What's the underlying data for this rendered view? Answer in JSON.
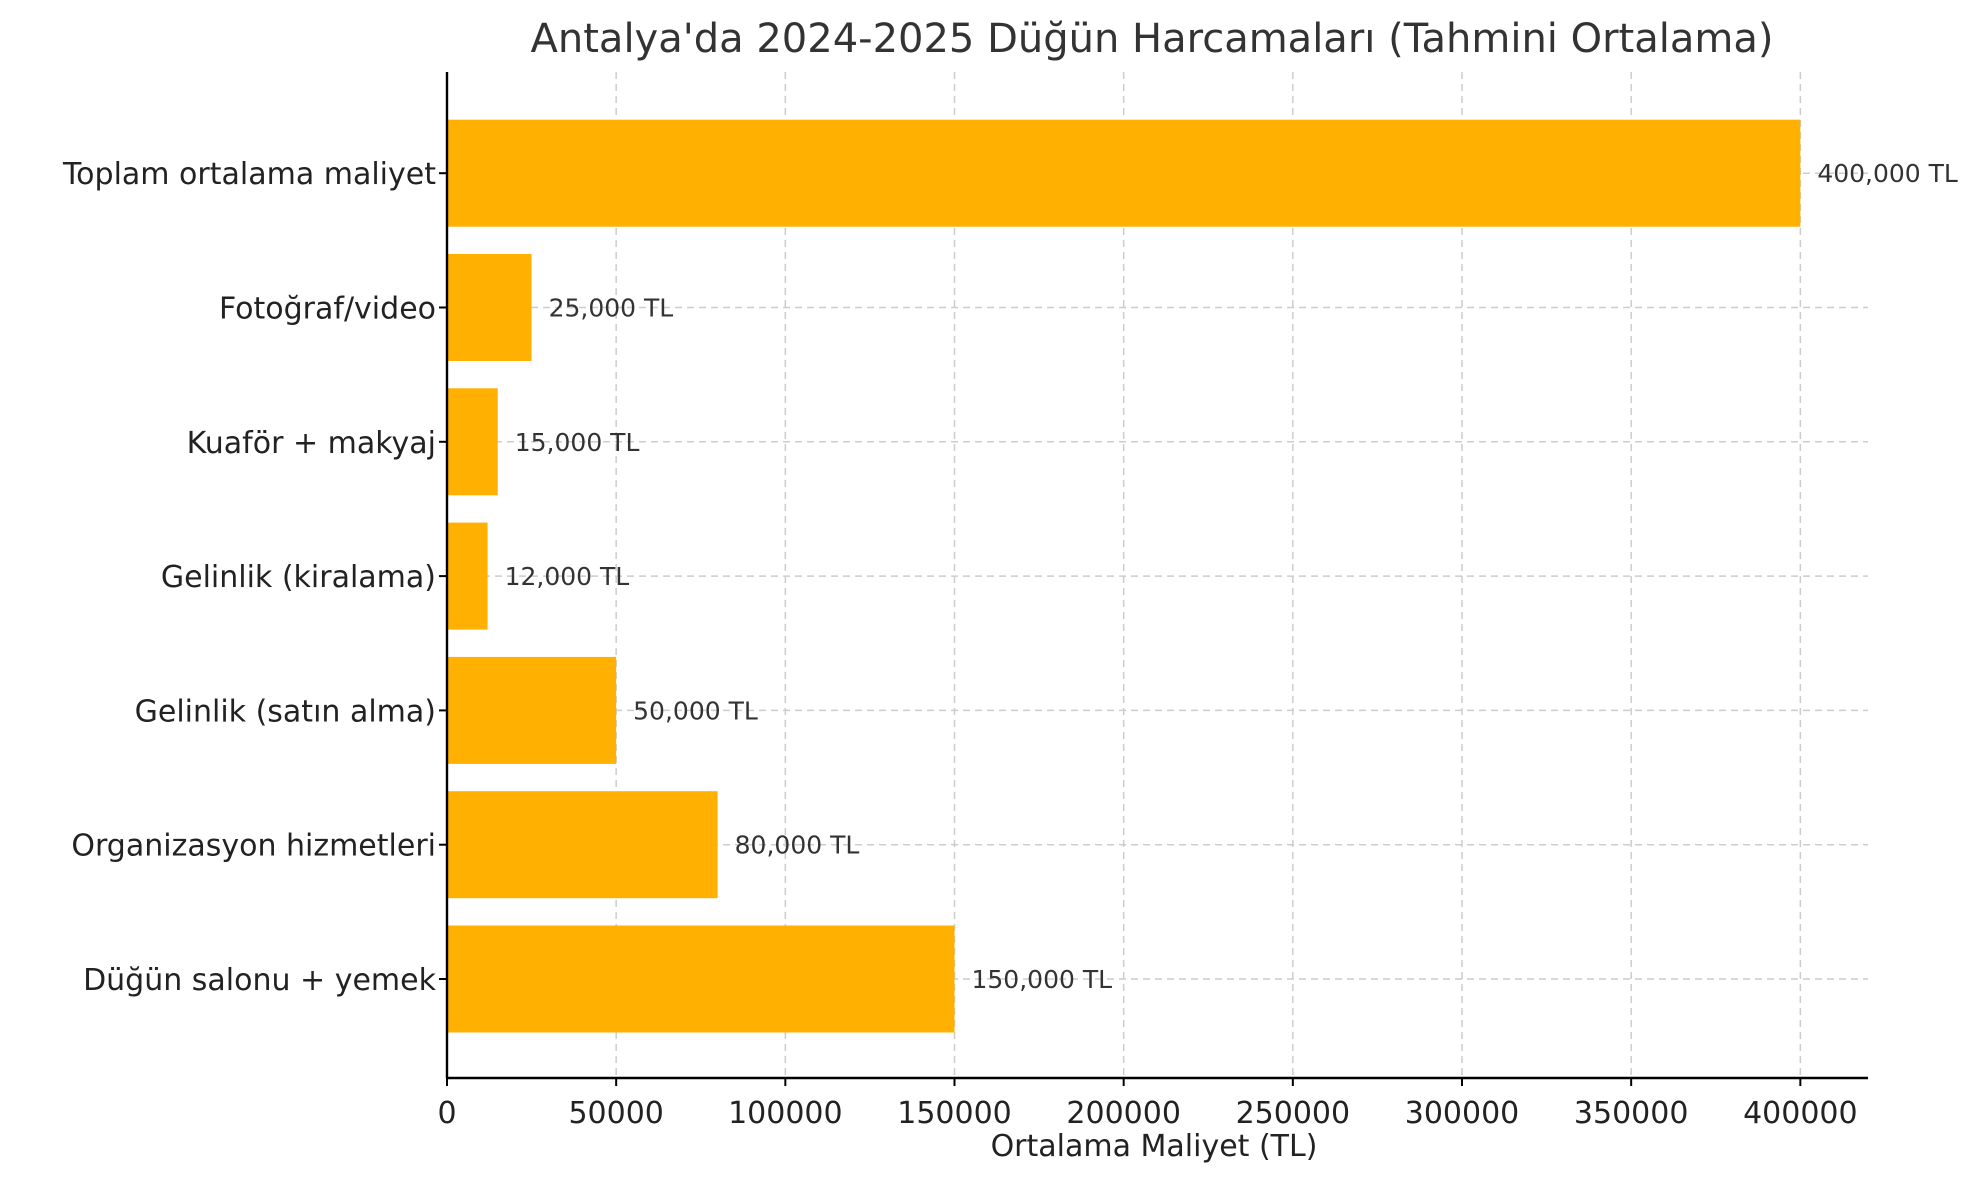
{
  "chart_data": {
    "type": "bar",
    "orientation": "horizontal",
    "title": "Antalya'da 2024-2025 Düğün Harcamaları (Tahmini Ortalama)",
    "xlabel": "Ortalama Maliyet (TL)",
    "ylabel": "",
    "categories": [
      "Düğün salonu + yemek",
      "Organizasyon hizmetleri",
      "Gelinlik (satın alma)",
      "Gelinlik (kiralama)",
      "Kuaför + makyaj",
      "Fotoğraf/video",
      "Toplam ortalama maliyet"
    ],
    "values": [
      150000,
      80000,
      50000,
      12000,
      15000,
      25000,
      400000
    ],
    "data_labels": [
      "150,000 TL",
      "80,000 TL",
      "50,000 TL",
      "12,000 TL",
      "15,000 TL",
      "25,000 TL",
      "400,000 TL"
    ],
    "xticks": [
      "0",
      "50000",
      "100000",
      "150000",
      "200000",
      "250000",
      "300000",
      "350000",
      "400000"
    ],
    "xlim": [
      0,
      420000
    ],
    "grid": true,
    "bar_color": "#FFB000"
  }
}
